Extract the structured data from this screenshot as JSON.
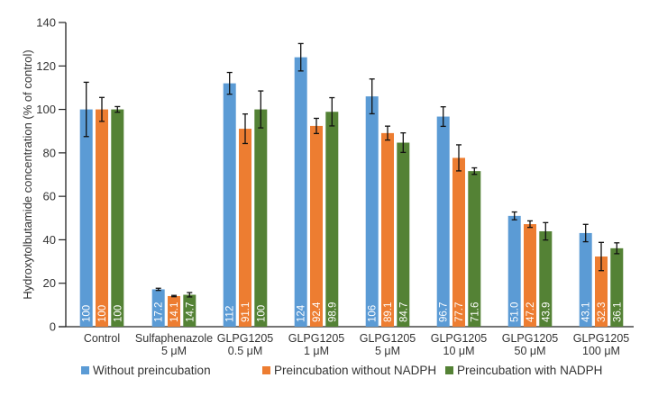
{
  "chart_data": {
    "type": "bar",
    "title": "",
    "xlabel": "",
    "ylabel": "Hydroxytolbutamide concentration (% of control)",
    "ylim": [
      0,
      140
    ],
    "yticks": [
      0,
      20,
      40,
      60,
      80,
      100,
      120,
      140
    ],
    "grid": false,
    "legend_position": "bottom",
    "categories": [
      [
        "Control"
      ],
      [
        "Sulfaphenazole",
        "5 μM"
      ],
      [
        "GLPG1205",
        "0.5 μM"
      ],
      [
        "GLPG1205",
        "1 μM"
      ],
      [
        "GLPG1205",
        "5 μM"
      ],
      [
        "GLPG1205",
        "10 μM"
      ],
      [
        "GLPG1205",
        "50 μM"
      ],
      [
        "GLPG1205",
        "100 μM"
      ]
    ],
    "series": [
      {
        "name": "Without preincubation",
        "color": "#5b9bd5",
        "values": [
          100,
          17.2,
          112,
          124,
          106,
          96.7,
          51.0,
          43.1
        ],
        "labels": [
          "100",
          "17.2",
          "112",
          "124",
          "106",
          "96.7",
          "51.0",
          "43.1"
        ],
        "errors": [
          12.5,
          0.5,
          5,
          6.3,
          8,
          4.5,
          1.8,
          4
        ]
      },
      {
        "name": "Preincubation without NADPH",
        "color": "#ed7d31",
        "values": [
          100,
          14.1,
          91.1,
          92.4,
          89.1,
          77.7,
          47.2,
          32.3
        ],
        "labels": [
          "100",
          "14.1",
          "91.1",
          "92.4",
          "89.1",
          "77.7",
          "47.2",
          "32.3"
        ],
        "errors": [
          5.5,
          0.3,
          6.8,
          3.5,
          3.2,
          6,
          1.5,
          6.5
        ]
      },
      {
        "name": "Preincubation with NADPH",
        "color": "#548235",
        "values": [
          100,
          14.7,
          100,
          98.9,
          84.7,
          71.6,
          43.9,
          36.1
        ],
        "labels": [
          "100",
          "14.7",
          "100",
          "98.9",
          "84.7",
          "71.6",
          "43.9",
          "36.1"
        ],
        "errors": [
          1.3,
          1,
          8.5,
          6.5,
          4.5,
          1.5,
          4,
          2.5
        ]
      }
    ]
  }
}
